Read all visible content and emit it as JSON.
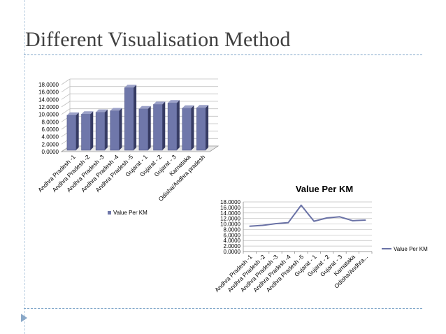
{
  "slide": {
    "title": "Different Visualisation Method"
  },
  "colors": {
    "bar_front": "#6f77aa",
    "bar_side": "#363b63",
    "bar_top": "#9ba1c8",
    "line": "#6a72a6",
    "grid": "#bfbfbf",
    "title_text": "#404040",
    "rule": "#7fa6c9"
  },
  "icons": [
    "bullet-arrow-icon"
  ],
  "chart_data": [
    {
      "type": "bar",
      "style": "3d-column",
      "title": "",
      "categories": [
        "Andhra Pradesh -1",
        "Andhra Pradesh -2",
        "Andhra Pradesh -3",
        "Andhra Pradesh -4",
        "Andhra Pradesh -5",
        "Gujarat - 1",
        "Gujarat - 2",
        "Gujarat - 3",
        "Karnataka",
        "Odisha/Andhra pradesh"
      ],
      "series": [
        {
          "name": "Value Per KM",
          "values": [
            9.4,
            9.7,
            10.2,
            10.6,
            16.8,
            11.1,
            12.3,
            12.7,
            11.3,
            11.4
          ]
        }
      ],
      "ylim": [
        0,
        18
      ],
      "yticks": [
        "0.0000",
        "2.0000",
        "4.0000",
        "6.0000",
        "8.0000",
        "10.0000",
        "12.0000",
        "14.0000",
        "16.0000",
        "18.0000"
      ],
      "grid": true,
      "legend": {
        "position": "bottom",
        "label": "Value Per KM"
      }
    },
    {
      "type": "line",
      "title": "Value Per KM",
      "categories": [
        "Andhra Pradesh -1",
        "Andhra Pradesh -2",
        "Andhra Pradesh -3",
        "Andhra Pradesh -4",
        "Andhra Pradesh -5",
        "Gujarat - 1",
        "Gujarat - 2",
        "Gujarat - 3",
        "Karnataka",
        "Odisha/Andhra..."
      ],
      "series": [
        {
          "name": "Value Per KM",
          "values": [
            9.2,
            9.5,
            10.1,
            10.5,
            16.8,
            11.0,
            12.2,
            12.6,
            11.2,
            11.4
          ]
        }
      ],
      "ylim": [
        0,
        18
      ],
      "yticks": [
        "0.0000",
        "2.0000",
        "4.0000",
        "6.0000",
        "8.0000",
        "10.0000",
        "12.0000",
        "14.0000",
        "16.0000",
        "18.0000"
      ],
      "grid": true,
      "legend": {
        "position": "right",
        "label": "Value Per KM"
      }
    }
  ]
}
